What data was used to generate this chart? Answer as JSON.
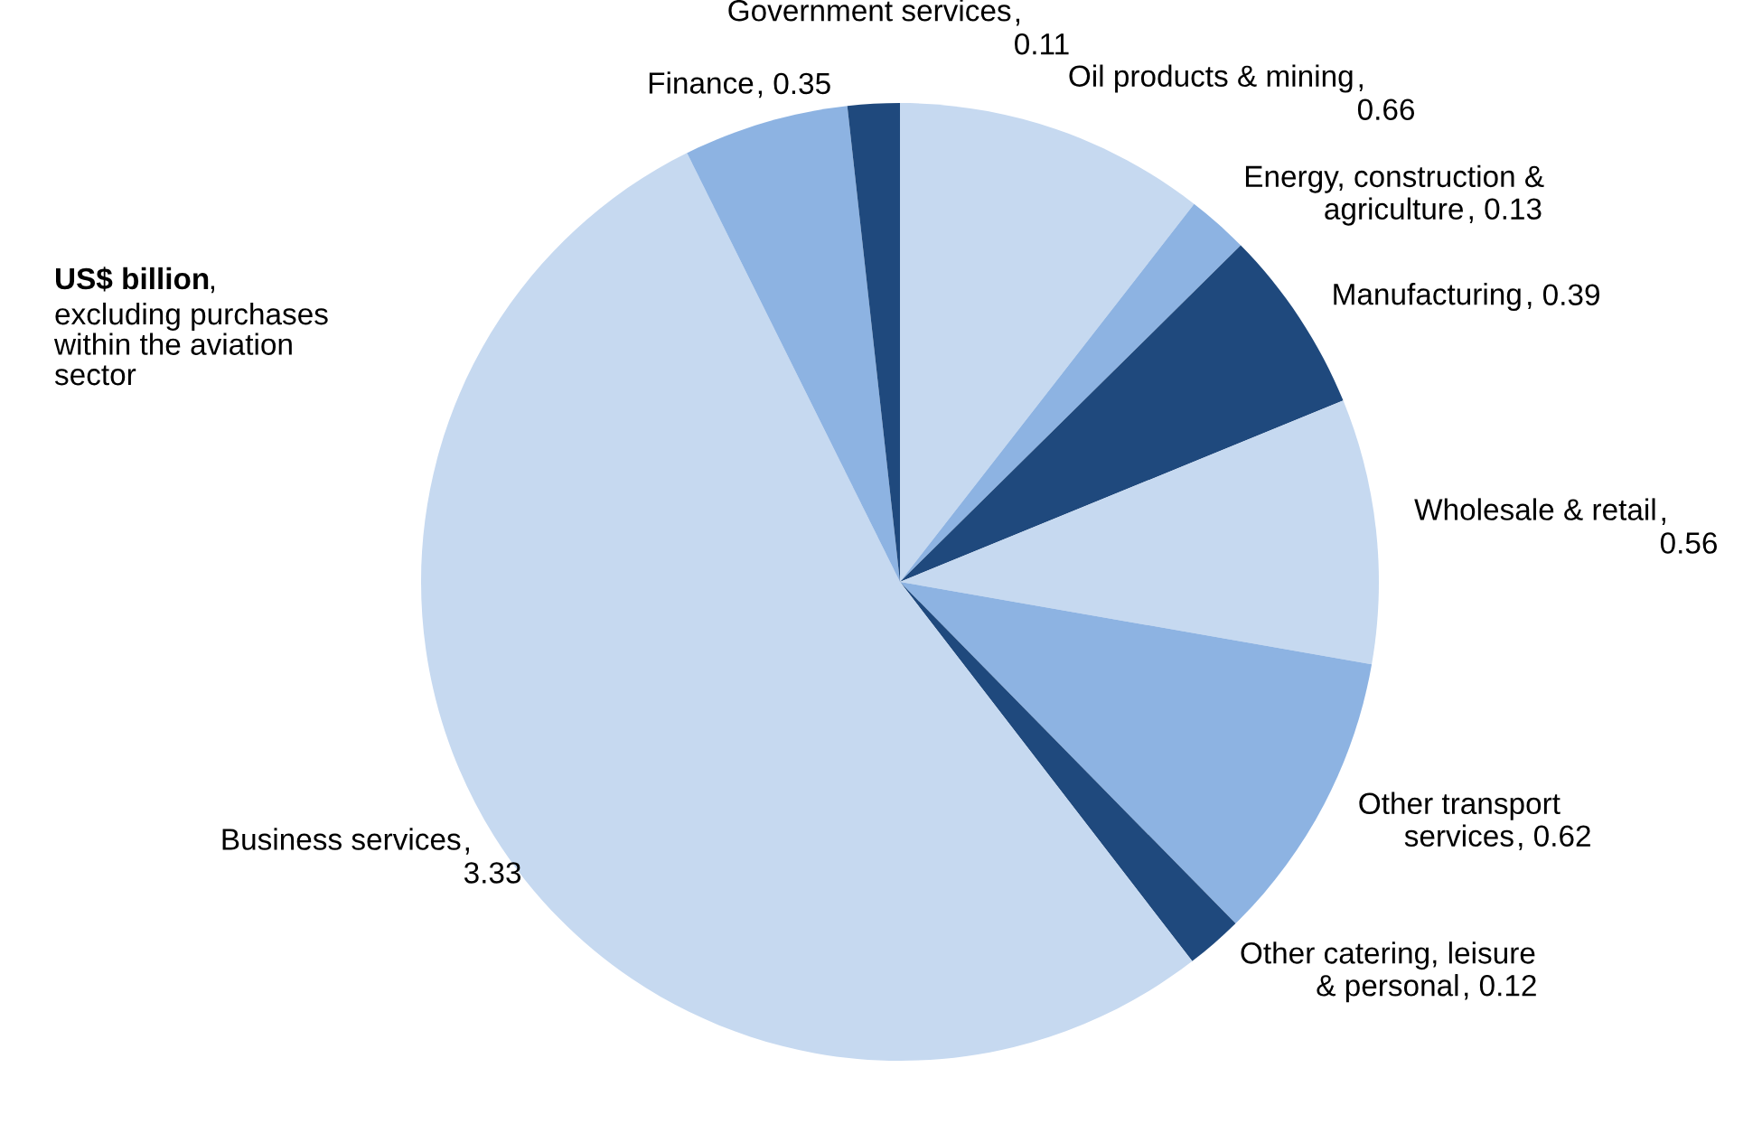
{
  "chart_data": {
    "type": "pie",
    "categories": [
      "Oil products & mining",
      "Energy, construction &\nagriculture",
      "Manufacturing",
      "Wholesale & retail",
      "Other transport\nservices",
      "Other catering, leisure\n& personal",
      "Business services",
      "Finance",
      "Government services"
    ],
    "values": [
      0.66,
      0.13,
      0.39,
      0.56,
      0.62,
      0.12,
      3.33,
      0.35,
      0.11
    ],
    "colors": [
      "#c6d9f0",
      "#8db3e2",
      "#1f497d",
      "#c6d9f0",
      "#8db3e2",
      "#1f497d",
      "#c6d9f0",
      "#8db3e2",
      "#1f497d"
    ],
    "value_labels": [
      ",\n0.66",
      ", 0.13",
      ", 0.39",
      ",\n0.56",
      ", 0.62",
      ", 0.12",
      ",\n3.33",
      ", 0.35",
      ",\n0.11"
    ],
    "annotations": [
      "US$ billion,\nexcluding purchases\nwithin the aviation\nsector"
    ]
  }
}
